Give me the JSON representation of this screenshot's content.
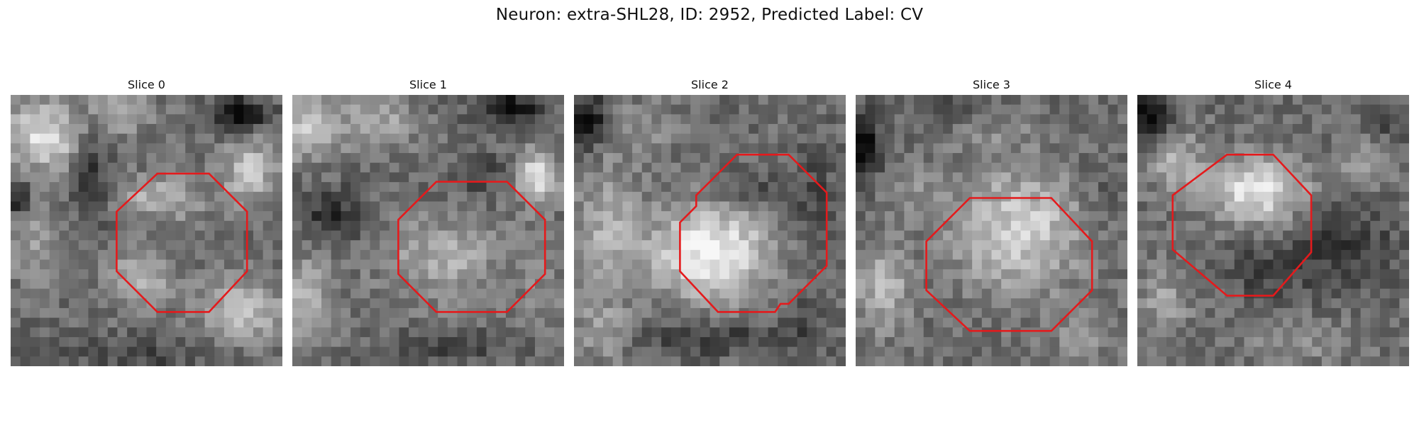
{
  "figure": {
    "title": "Neuron: extra-SHL28, ID: 2952, Predicted Label: CV"
  },
  "panels": [
    {
      "label": "Slice 0"
    },
    {
      "label": "Slice 1"
    },
    {
      "label": "Slice 2"
    },
    {
      "label": "Slice 3"
    },
    {
      "label": "Slice 4"
    }
  ],
  "colors": {
    "roi_outline": "#e41a1c",
    "background": "#ffffff"
  }
}
